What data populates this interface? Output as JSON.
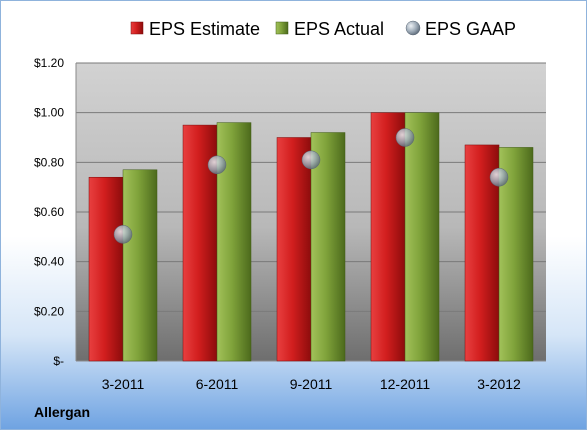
{
  "company": "Allergan",
  "colors": {
    "estimate": "#d21e1e",
    "actual": "#7fa23a",
    "gaap": "#9aa7b4"
  },
  "chart_data": {
    "type": "bar",
    "categories": [
      "3-2011",
      "6-2011",
      "9-2011",
      "12-2011",
      "3-2012"
    ],
    "series": [
      {
        "name": "EPS Estimate",
        "type": "bar",
        "values": [
          0.74,
          0.95,
          0.9,
          1.0,
          0.87
        ]
      },
      {
        "name": "EPS Actual",
        "type": "bar",
        "values": [
          0.77,
          0.96,
          0.92,
          1.0,
          0.86
        ]
      },
      {
        "name": "EPS GAAP",
        "type": "scatter",
        "values": [
          0.51,
          0.79,
          0.81,
          0.9,
          0.74
        ]
      }
    ],
    "yticks": [
      0,
      0.2,
      0.4,
      0.6,
      0.8,
      1.0,
      1.2
    ],
    "ytick_labels": [
      "$-",
      "$0.20",
      "$0.40",
      "$0.60",
      "$0.80",
      "$1.00",
      "$1.20"
    ],
    "ylim": [
      0,
      1.2
    ],
    "legend": "top",
    "grid": true
  }
}
